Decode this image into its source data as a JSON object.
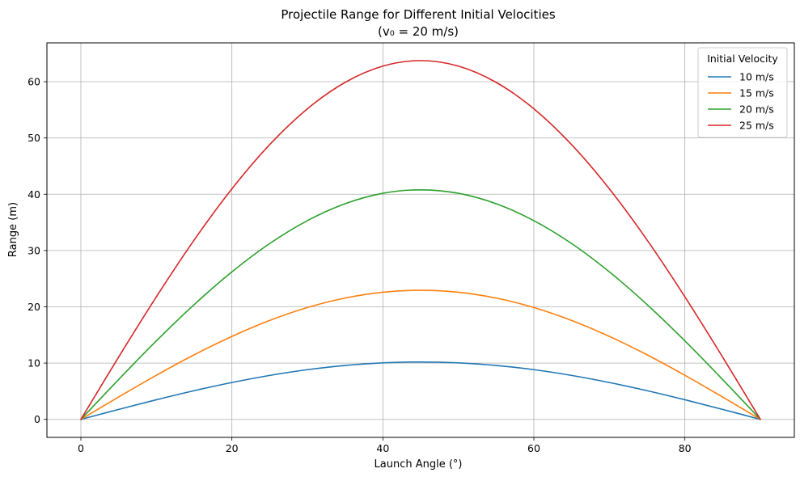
{
  "chart_data": {
    "type": "line",
    "title": "Projectile Range for Different Initial Velocities",
    "subtitle": "(v₀ = 20 m/s)",
    "xlabel": "Launch Angle (°)",
    "ylabel": "Range (m)",
    "xlim": [
      -4.5,
      94.5
    ],
    "ylim": [
      -3.2,
      66.9
    ],
    "xticks": [
      0,
      20,
      40,
      60,
      80
    ],
    "yticks": [
      0,
      10,
      20,
      30,
      40,
      50,
      60
    ],
    "grid": true,
    "legend": {
      "title": "Initial Velocity",
      "placement": "top-right"
    },
    "x": [
      0,
      5,
      10,
      15,
      20,
      25,
      30,
      35,
      40,
      45,
      50,
      55,
      60,
      65,
      70,
      75,
      80,
      85,
      90
    ],
    "series": [
      {
        "name": "10 m/s",
        "color": "#1f77b4",
        "values": [
          0,
          1.77,
          3.49,
          5.1,
          6.55,
          7.81,
          8.83,
          9.58,
          10.04,
          10.19,
          10.04,
          9.58,
          8.83,
          7.81,
          6.55,
          5.1,
          3.49,
          1.77,
          0
        ]
      },
      {
        "name": "15 m/s",
        "color": "#ff7f0e",
        "values": [
          0,
          3.98,
          7.84,
          11.47,
          14.74,
          17.57,
          19.87,
          21.56,
          22.6,
          22.94,
          22.6,
          21.56,
          19.87,
          17.57,
          14.74,
          11.47,
          7.84,
          3.98,
          0
        ]
      },
      {
        "name": "20 m/s",
        "color": "#2ca02c",
        "values": [
          0,
          7.08,
          13.95,
          20.39,
          26.21,
          31.24,
          35.31,
          38.32,
          40.17,
          40.79,
          40.17,
          38.32,
          35.31,
          31.24,
          26.21,
          20.39,
          13.95,
          7.08,
          0
        ]
      },
      {
        "name": "25 m/s",
        "color": "#d62728",
        "values": [
          0,
          11.07,
          21.79,
          31.86,
          40.96,
          48.81,
          55.18,
          59.88,
          62.77,
          63.74,
          62.77,
          59.88,
          55.18,
          48.81,
          40.96,
          31.86,
          21.79,
          11.07,
          0
        ]
      }
    ]
  }
}
